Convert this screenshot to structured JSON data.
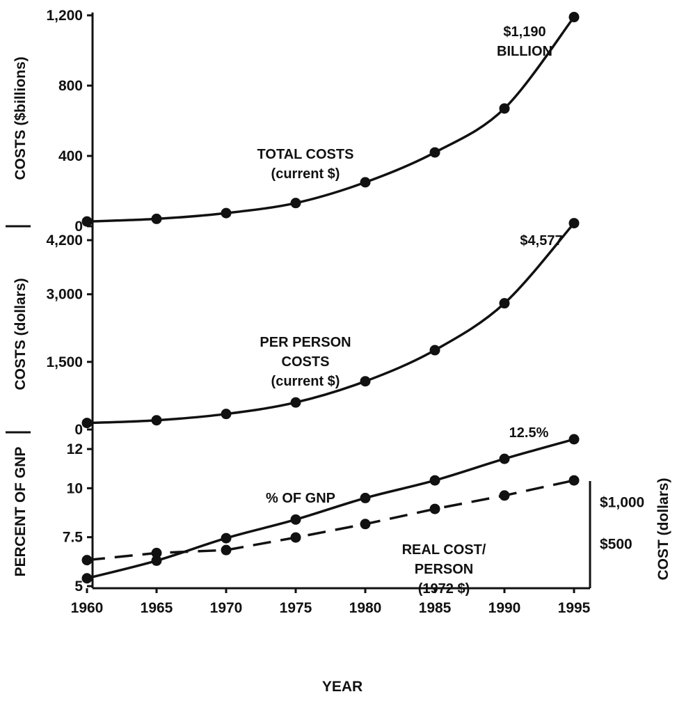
{
  "chart_data": [
    {
      "type": "line",
      "panel": "top",
      "ylabel": "COSTS ($billions)",
      "ylim": [
        0,
        1200
      ],
      "yticks": [
        0,
        400,
        800,
        1200
      ],
      "ytick_labels": [
        "0",
        "400",
        "800",
        "1,200"
      ],
      "series": [
        {
          "name": "TOTAL COSTS (current $)",
          "style": "solid",
          "x": [
            1960,
            1965,
            1970,
            1975,
            1980,
            1985,
            1990,
            1995
          ],
          "y": [
            27,
            42,
            75,
            132,
            250,
            420,
            670,
            1190
          ]
        }
      ],
      "series_label_lines": [
        "TOTAL COSTS",
        "(current $)"
      ],
      "annotations": [
        {
          "lines": [
            "$1,190",
            "BILLION"
          ]
        }
      ]
    },
    {
      "type": "line",
      "panel": "middle",
      "ylabel": "COSTS (dollars)",
      "ylim": [
        0,
        4200
      ],
      "yticks": [
        0,
        1500,
        3000,
        4200
      ],
      "ytick_labels": [
        "0",
        "1,500",
        "3,000",
        "4,200"
      ],
      "series": [
        {
          "name": "PER PERSON COSTS (current $)",
          "style": "solid",
          "x": [
            1960,
            1965,
            1970,
            1975,
            1980,
            1985,
            1990,
            1995
          ],
          "y": [
            145,
            205,
            345,
            600,
            1070,
            1760,
            2800,
            4577
          ]
        }
      ],
      "series_label_lines": [
        "PER PERSON",
        "COSTS",
        "(current $)"
      ],
      "annotations": [
        {
          "lines": [
            "$4,577"
          ]
        }
      ]
    },
    {
      "type": "line",
      "panel": "bottom",
      "xlabel": "YEAR",
      "x_ticks": [
        1960,
        1965,
        1970,
        1975,
        1980,
        1985,
        1990,
        1995
      ],
      "ylabel": "PERCENT OF GNP",
      "ylim": [
        5,
        12.5
      ],
      "yticks": [
        5,
        7.5,
        10,
        12
      ],
      "ytick_labels": [
        "5",
        "7.5",
        "10",
        "12"
      ],
      "y2label": "COST (dollars)",
      "y2lim": [
        0,
        1750
      ],
      "y2ticks": [
        500,
        1000
      ],
      "y2tick_labels": [
        "$500",
        "$1,000"
      ],
      "series": [
        {
          "name": "% OF GNP",
          "style": "solid",
          "axis": "left",
          "x": [
            1960,
            1965,
            1970,
            1975,
            1980,
            1985,
            1990,
            1995
          ],
          "y": [
            5.4,
            6.3,
            7.45,
            8.4,
            9.5,
            10.4,
            11.5,
            12.5
          ]
        },
        {
          "name": "REAL COST/ PERSON (1972 $)",
          "style": "dashed",
          "axis": "right",
          "x": [
            1960,
            1965,
            1970,
            1975,
            1980,
            1985,
            1990,
            1995
          ],
          "y": [
            310,
            395,
            430,
            580,
            740,
            920,
            1080,
            1260
          ]
        }
      ],
      "series_label_lines": {
        "gnp": [
          "% OF GNP"
        ],
        "real": [
          "REAL COST/",
          "PERSON",
          "(1972 $)"
        ]
      },
      "annotations": [
        {
          "lines": [
            "12.5%"
          ]
        }
      ]
    }
  ]
}
